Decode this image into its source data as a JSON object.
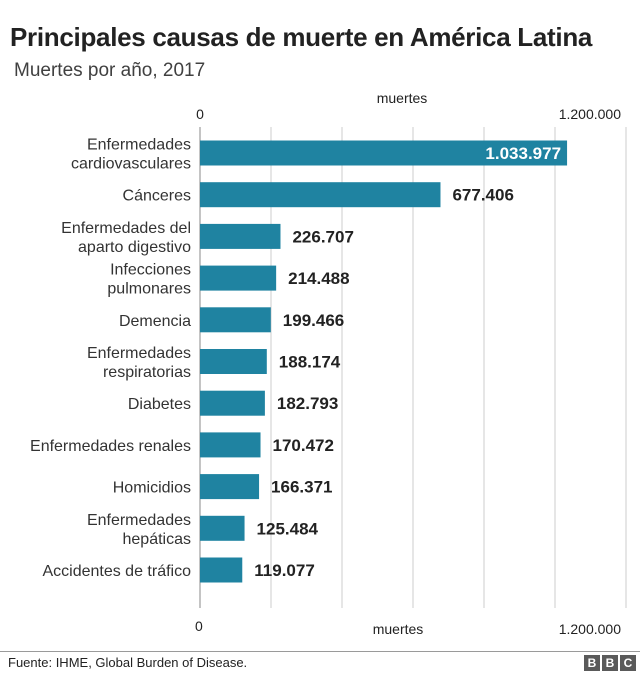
{
  "title": "Principales causas de muerte en América Latina",
  "subtitle": "Muertes por año, 2017",
  "source": "Fuente: IHME, Global Burden of Disease.",
  "brand": [
    "B",
    "B",
    "C"
  ],
  "colors": {
    "bar": "#1f83a1",
    "grid": "#cccccc",
    "axis": "#888888"
  },
  "chart_data": {
    "type": "bar",
    "orientation": "horizontal",
    "title": "Principales causas de muerte en América Latina",
    "subtitle": "Muertes por año, 2017",
    "xlabel": "muertes",
    "xlim": [
      0,
      1200000
    ],
    "tick_labels": {
      "start": "0",
      "end": "1.200.000"
    },
    "grid": true,
    "categories": [
      [
        "Enfermedades",
        "cardiovasculares"
      ],
      [
        "Cánceres"
      ],
      [
        "Enfermedades del",
        "aparto digestivo"
      ],
      [
        "Infecciones",
        "pulmonares"
      ],
      [
        "Demencia"
      ],
      [
        "Enfermedades",
        "respiratorias"
      ],
      [
        "Diabetes"
      ],
      [
        "Enfermedades renales"
      ],
      [
        "Homicidios"
      ],
      [
        "Enfermedades",
        "hepáticas"
      ],
      [
        "Accidentes de tráfico"
      ]
    ],
    "values": [
      1033977,
      677406,
      226707,
      214488,
      199466,
      188174,
      182793,
      170472,
      166371,
      125484,
      119077
    ],
    "value_labels": [
      "1.033.977",
      "677.406",
      "226.707",
      "214.488",
      "199.466",
      "188.174",
      "182.793",
      "170.472",
      "166.371",
      "125.484",
      "119.077"
    ]
  }
}
